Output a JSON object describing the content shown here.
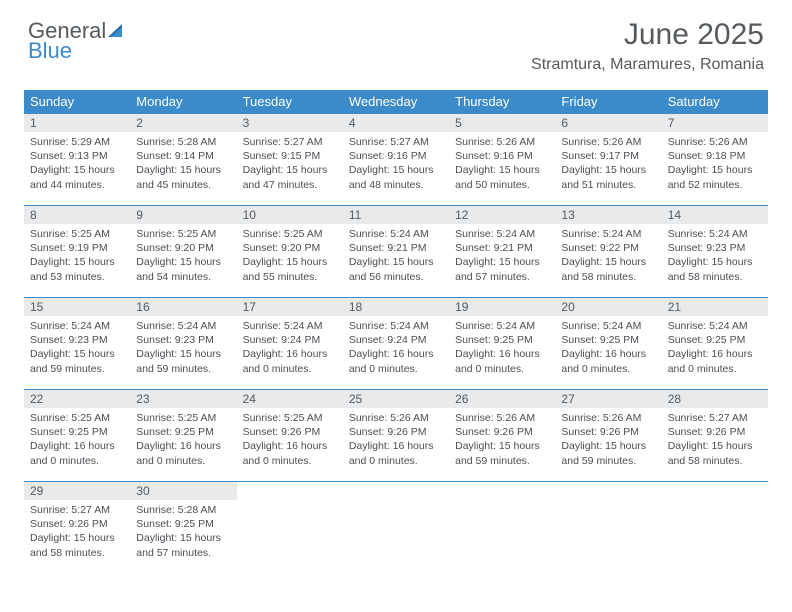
{
  "brand": {
    "part1": "General",
    "part2": "Blue"
  },
  "title": "June 2025",
  "location": "Stramtura, Maramures, Romania",
  "colors": {
    "header_blue": "#3b8ac9",
    "daynum_bg": "#e9eaeb",
    "text_dark": "#555a5f",
    "body_text": "#4a4f54",
    "white": "#ffffff"
  },
  "weekdays": [
    "Sunday",
    "Monday",
    "Tuesday",
    "Wednesday",
    "Thursday",
    "Friday",
    "Saturday"
  ],
  "weeks": [
    [
      {
        "n": "1",
        "sunrise": "Sunrise: 5:29 AM",
        "sunset": "Sunset: 9:13 PM",
        "daylight": "Daylight: 15 hours and 44 minutes."
      },
      {
        "n": "2",
        "sunrise": "Sunrise: 5:28 AM",
        "sunset": "Sunset: 9:14 PM",
        "daylight": "Daylight: 15 hours and 45 minutes."
      },
      {
        "n": "3",
        "sunrise": "Sunrise: 5:27 AM",
        "sunset": "Sunset: 9:15 PM",
        "daylight": "Daylight: 15 hours and 47 minutes."
      },
      {
        "n": "4",
        "sunrise": "Sunrise: 5:27 AM",
        "sunset": "Sunset: 9:16 PM",
        "daylight": "Daylight: 15 hours and 48 minutes."
      },
      {
        "n": "5",
        "sunrise": "Sunrise: 5:26 AM",
        "sunset": "Sunset: 9:16 PM",
        "daylight": "Daylight: 15 hours and 50 minutes."
      },
      {
        "n": "6",
        "sunrise": "Sunrise: 5:26 AM",
        "sunset": "Sunset: 9:17 PM",
        "daylight": "Daylight: 15 hours and 51 minutes."
      },
      {
        "n": "7",
        "sunrise": "Sunrise: 5:26 AM",
        "sunset": "Sunset: 9:18 PM",
        "daylight": "Daylight: 15 hours and 52 minutes."
      }
    ],
    [
      {
        "n": "8",
        "sunrise": "Sunrise: 5:25 AM",
        "sunset": "Sunset: 9:19 PM",
        "daylight": "Daylight: 15 hours and 53 minutes."
      },
      {
        "n": "9",
        "sunrise": "Sunrise: 5:25 AM",
        "sunset": "Sunset: 9:20 PM",
        "daylight": "Daylight: 15 hours and 54 minutes."
      },
      {
        "n": "10",
        "sunrise": "Sunrise: 5:25 AM",
        "sunset": "Sunset: 9:20 PM",
        "daylight": "Daylight: 15 hours and 55 minutes."
      },
      {
        "n": "11",
        "sunrise": "Sunrise: 5:24 AM",
        "sunset": "Sunset: 9:21 PM",
        "daylight": "Daylight: 15 hours and 56 minutes."
      },
      {
        "n": "12",
        "sunrise": "Sunrise: 5:24 AM",
        "sunset": "Sunset: 9:21 PM",
        "daylight": "Daylight: 15 hours and 57 minutes."
      },
      {
        "n": "13",
        "sunrise": "Sunrise: 5:24 AM",
        "sunset": "Sunset: 9:22 PM",
        "daylight": "Daylight: 15 hours and 58 minutes."
      },
      {
        "n": "14",
        "sunrise": "Sunrise: 5:24 AM",
        "sunset": "Sunset: 9:23 PM",
        "daylight": "Daylight: 15 hours and 58 minutes."
      }
    ],
    [
      {
        "n": "15",
        "sunrise": "Sunrise: 5:24 AM",
        "sunset": "Sunset: 9:23 PM",
        "daylight": "Daylight: 15 hours and 59 minutes."
      },
      {
        "n": "16",
        "sunrise": "Sunrise: 5:24 AM",
        "sunset": "Sunset: 9:23 PM",
        "daylight": "Daylight: 15 hours and 59 minutes."
      },
      {
        "n": "17",
        "sunrise": "Sunrise: 5:24 AM",
        "sunset": "Sunset: 9:24 PM",
        "daylight": "Daylight: 16 hours and 0 minutes."
      },
      {
        "n": "18",
        "sunrise": "Sunrise: 5:24 AM",
        "sunset": "Sunset: 9:24 PM",
        "daylight": "Daylight: 16 hours and 0 minutes."
      },
      {
        "n": "19",
        "sunrise": "Sunrise: 5:24 AM",
        "sunset": "Sunset: 9:25 PM",
        "daylight": "Daylight: 16 hours and 0 minutes."
      },
      {
        "n": "20",
        "sunrise": "Sunrise: 5:24 AM",
        "sunset": "Sunset: 9:25 PM",
        "daylight": "Daylight: 16 hours and 0 minutes."
      },
      {
        "n": "21",
        "sunrise": "Sunrise: 5:24 AM",
        "sunset": "Sunset: 9:25 PM",
        "daylight": "Daylight: 16 hours and 0 minutes."
      }
    ],
    [
      {
        "n": "22",
        "sunrise": "Sunrise: 5:25 AM",
        "sunset": "Sunset: 9:25 PM",
        "daylight": "Daylight: 16 hours and 0 minutes."
      },
      {
        "n": "23",
        "sunrise": "Sunrise: 5:25 AM",
        "sunset": "Sunset: 9:25 PM",
        "daylight": "Daylight: 16 hours and 0 minutes."
      },
      {
        "n": "24",
        "sunrise": "Sunrise: 5:25 AM",
        "sunset": "Sunset: 9:26 PM",
        "daylight": "Daylight: 16 hours and 0 minutes."
      },
      {
        "n": "25",
        "sunrise": "Sunrise: 5:26 AM",
        "sunset": "Sunset: 9:26 PM",
        "daylight": "Daylight: 16 hours and 0 minutes."
      },
      {
        "n": "26",
        "sunrise": "Sunrise: 5:26 AM",
        "sunset": "Sunset: 9:26 PM",
        "daylight": "Daylight: 15 hours and 59 minutes."
      },
      {
        "n": "27",
        "sunrise": "Sunrise: 5:26 AM",
        "sunset": "Sunset: 9:26 PM",
        "daylight": "Daylight: 15 hours and 59 minutes."
      },
      {
        "n": "28",
        "sunrise": "Sunrise: 5:27 AM",
        "sunset": "Sunset: 9:26 PM",
        "daylight": "Daylight: 15 hours and 58 minutes."
      }
    ],
    [
      {
        "n": "29",
        "sunrise": "Sunrise: 5:27 AM",
        "sunset": "Sunset: 9:26 PM",
        "daylight": "Daylight: 15 hours and 58 minutes."
      },
      {
        "n": "30",
        "sunrise": "Sunrise: 5:28 AM",
        "sunset": "Sunset: 9:25 PM",
        "daylight": "Daylight: 15 hours and 57 minutes."
      },
      null,
      null,
      null,
      null,
      null
    ]
  ]
}
